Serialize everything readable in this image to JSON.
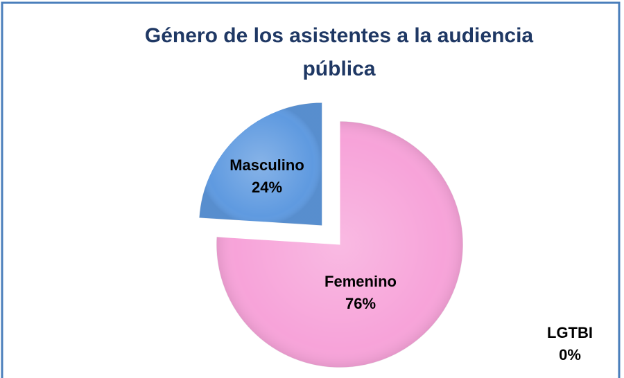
{
  "chart_data": {
    "type": "pie",
    "title": "Género de los asistentes a la audiencia pública",
    "categories": [
      "Femenino",
      "Masculino",
      "LGTBI"
    ],
    "values": [
      76,
      24,
      0
    ],
    "value_labels": [
      "76%",
      "24%",
      "0%"
    ],
    "colors": [
      "#f7a3d9",
      "#5f9ae0",
      "#9bbb59"
    ],
    "exploded": [
      false,
      true,
      false
    ]
  }
}
